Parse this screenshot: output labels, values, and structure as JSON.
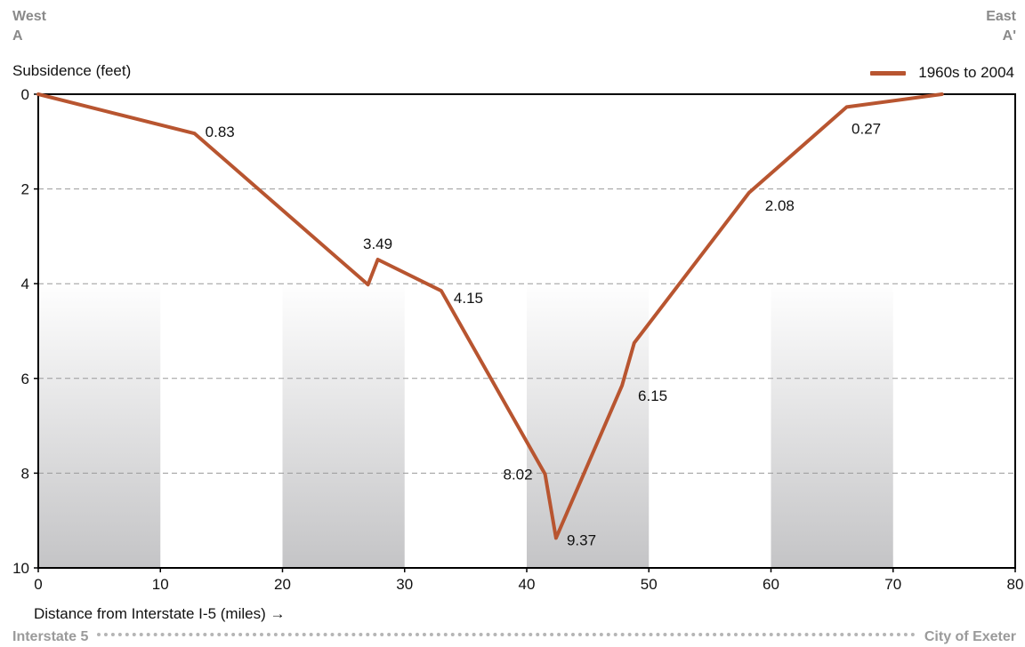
{
  "corners": {
    "left_top": "West",
    "left_bottom": "A",
    "right_top": "East",
    "right_bottom": "A'"
  },
  "route": {
    "start": "Interstate 5",
    "end": "City of Exeter"
  },
  "colors": {
    "series": "#b85530",
    "grid": "#9a9a9a",
    "band_top": "#ffffff",
    "band_bottom": "#c4c4c6"
  },
  "chart_data": {
    "type": "line",
    "ylabel": "Subsidence (feet)",
    "xlabel": "Distance from Interstate I-5 (miles) →",
    "xlim": [
      0,
      80
    ],
    "ylim": [
      0,
      10
    ],
    "y_inverted": true,
    "x_ticks": [
      "0",
      "10",
      "20",
      "30",
      "40",
      "50",
      "60",
      "70",
      "80"
    ],
    "y_ticks": [
      "0",
      "2",
      "4",
      "6",
      "8",
      "10"
    ],
    "grid": "horizontal dashed",
    "legend_position": "top-right",
    "shaded_bands": [
      [
        0,
        10
      ],
      [
        20,
        30
      ],
      [
        40,
        50
      ],
      [
        60,
        70
      ]
    ],
    "series": [
      {
        "name": "1960s to 2004",
        "x": [
          0,
          12.8,
          27,
          27.8,
          33,
          41.5,
          42.4,
          47.8,
          48.8,
          58.2,
          66.2,
          74
        ],
        "y": [
          0,
          0.83,
          4.02,
          3.49,
          4.15,
          8.02,
          9.37,
          6.15,
          5.25,
          2.08,
          0.27,
          0
        ]
      }
    ],
    "data_labels": [
      {
        "x": 12.8,
        "y": 0.83,
        "text": "0.83",
        "pos": "right"
      },
      {
        "x": 27.8,
        "y": 3.49,
        "text": "3.49",
        "pos": "above"
      },
      {
        "x": 33,
        "y": 4.15,
        "text": "4.15",
        "pos": "right"
      },
      {
        "x": 41.5,
        "y": 8.02,
        "text": "8.02",
        "pos": "left"
      },
      {
        "x": 42.4,
        "y": 9.37,
        "text": "9.37",
        "pos": "right"
      },
      {
        "x": 47.8,
        "y": 6.15,
        "text": "6.15",
        "pos": "right"
      },
      {
        "x": 58.2,
        "y": 2.08,
        "text": "2.08",
        "pos": "below-right"
      },
      {
        "x": 66.2,
        "y": 0.27,
        "text": "0.27",
        "pos": "below"
      }
    ]
  }
}
